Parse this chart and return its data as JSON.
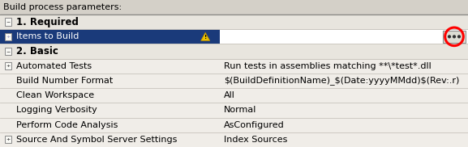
{
  "title": "Build process parameters:",
  "outer_bg": "#d4d0c8",
  "table_bg": "#f0ede8",
  "section_bg": "#e8e5de",
  "selected_row_bg": "#1a3a7a",
  "selected_row_fg": "#ffffff",
  "normal_row_fg": "#000000",
  "grid_line_color": "#c8c4bc",
  "border_color": "#888884",
  "col_split": 0.47,
  "title_text": "Build process parameters:",
  "title_font_size": 8.0,
  "row_font_size": 8.0,
  "value_font_size": 8.0,
  "section_font_size": 8.5,
  "row_items": [
    {
      "type": "section",
      "label": "1. Required"
    },
    {
      "type": "row",
      "label": "Items to Build",
      "value": "",
      "selected": true,
      "has_plus": true,
      "has_warning": true
    },
    {
      "type": "section",
      "label": "2. Basic"
    },
    {
      "type": "row",
      "label": "Automated Tests",
      "value": "Run tests in assemblies matching **\\*test*.dll",
      "selected": false,
      "has_plus": true
    },
    {
      "type": "row",
      "label": "Build Number Format",
      "value": "$(BuildDefinitionName)_$(Date:yyyyMMdd)$(Rev:.r)",
      "selected": false,
      "has_plus": false
    },
    {
      "type": "row",
      "label": "Clean Workspace",
      "value": "All",
      "selected": false,
      "has_plus": false
    },
    {
      "type": "row",
      "label": "Logging Verbosity",
      "value": "Normal",
      "selected": false,
      "has_plus": false
    },
    {
      "type": "row",
      "label": "Perform Code Analysis",
      "value": "AsConfigured",
      "selected": false,
      "has_plus": false
    },
    {
      "type": "row",
      "label": "Source And Symbol Server Settings",
      "value": "Index Sources",
      "selected": false,
      "has_plus": true
    }
  ]
}
